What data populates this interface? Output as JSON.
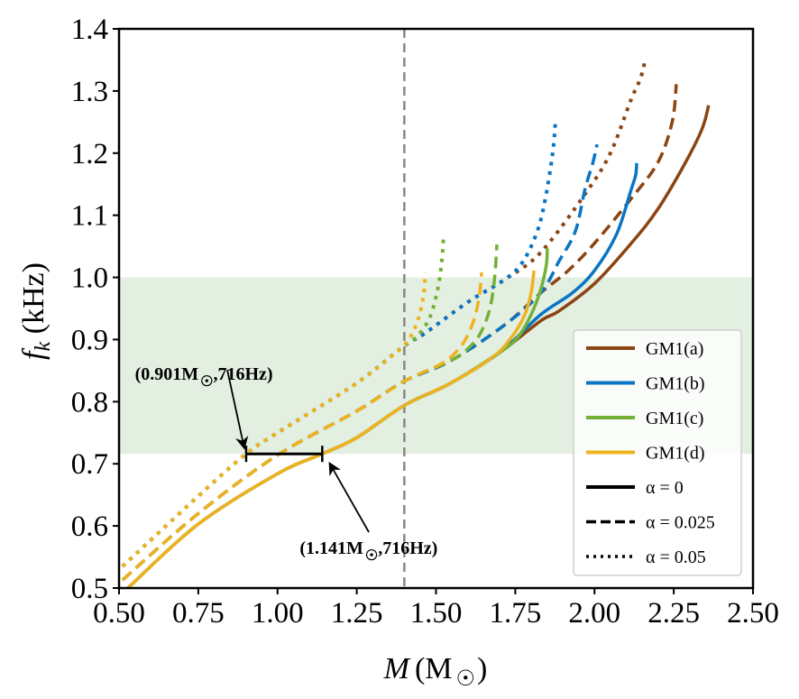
{
  "chart_data": {
    "type": "line",
    "title": "",
    "xlabel": "M (M☉)",
    "xlabel_italic": "M",
    "xlabel_unit": "(M",
    "xlabel_sub": "☉",
    "xlabel_close": ")",
    "ylabel_italic": "f",
    "ylabel_sub": "k",
    "ylabel_unit": " (kHz)",
    "xlim": [
      0.5,
      2.5
    ],
    "ylim": [
      0.5,
      1.4
    ],
    "xticks": [
      0.5,
      0.75,
      1.0,
      1.25,
      1.5,
      1.75,
      2.0,
      2.25,
      2.5
    ],
    "xtick_labels": [
      "0.50",
      "0.75",
      "1.00",
      "1.25",
      "1.50",
      "1.75",
      "2.00",
      "2.25",
      "2.50"
    ],
    "yticks": [
      0.5,
      0.6,
      0.7,
      0.8,
      0.9,
      1.0,
      1.1,
      1.2,
      1.3,
      1.4
    ],
    "ytick_labels": [
      "0.5",
      "0.6",
      "0.7",
      "0.8",
      "0.9",
      "1.0",
      "1.1",
      "1.2",
      "1.3",
      "1.4"
    ],
    "grid": false,
    "shaded_band": {
      "y_from": 0.716,
      "y_to": 1.0,
      "color": "#e3efe1"
    },
    "vertical_line": {
      "x": 1.4,
      "color": "#888888",
      "style": "dashed"
    },
    "colors": {
      "GM1(a)": "#8b4513",
      "GM1(b)": "#0a75c4",
      "GM1(c)": "#74b136",
      "GM1(d)": "#efb21e"
    },
    "series": [
      {
        "name": "GM1(a)",
        "alpha": 0,
        "style": "solid",
        "color": "#8b4513",
        "x": [
          0.528,
          0.75,
          1.0,
          1.141,
          1.25,
          1.4,
          1.547,
          1.703,
          1.83,
          1.888,
          2.0,
          2.116,
          2.2,
          2.287,
          2.34,
          2.36
        ],
        "y": [
          0.5,
          0.603,
          0.684,
          0.716,
          0.742,
          0.794,
          0.83,
          0.88,
          0.93,
          0.946,
          0.99,
          1.055,
          1.11,
          1.185,
          1.24,
          1.277
        ]
      },
      {
        "name": "GM1(a)",
        "alpha": 0.025,
        "style": "dashed",
        "color": "#8b4513",
        "x": [
          0.511,
          0.75,
          1.0,
          1.25,
          1.4,
          1.547,
          1.718,
          1.83,
          1.917,
          2.0,
          2.116,
          2.2,
          2.245,
          2.258
        ],
        "y": [
          0.513,
          0.62,
          0.714,
          0.785,
          0.833,
          0.866,
          0.924,
          0.975,
          1.011,
          1.055,
          1.127,
          1.185,
          1.25,
          1.311
        ]
      },
      {
        "name": "GM1(a)",
        "alpha": 0.05,
        "style": "dotted",
        "color": "#8b4513",
        "x": [
          0.511,
          0.75,
          0.901,
          1.0,
          1.25,
          1.4,
          1.462,
          1.6,
          1.718,
          1.83,
          1.97,
          2.05,
          2.116,
          2.145,
          2.159
        ],
        "y": [
          0.535,
          0.648,
          0.716,
          0.75,
          0.83,
          0.89,
          0.909,
          0.96,
          0.997,
          1.04,
          1.134,
          1.2,
          1.287,
          1.32,
          1.348
        ]
      },
      {
        "name": "GM1(b)",
        "alpha": 0,
        "style": "solid",
        "color": "#0a75c4",
        "x": [
          0.528,
          0.75,
          1.0,
          1.141,
          1.25,
          1.4,
          1.547,
          1.703,
          1.83,
          1.93,
          2.0,
          2.07,
          2.116,
          2.13,
          2.133
        ],
        "y": [
          0.5,
          0.603,
          0.684,
          0.716,
          0.742,
          0.794,
          0.83,
          0.88,
          0.94,
          0.975,
          1.011,
          1.07,
          1.142,
          1.165,
          1.184
        ]
      },
      {
        "name": "GM1(b)",
        "alpha": 0.025,
        "style": "dashed",
        "color": "#0a75c4",
        "x": [
          0.511,
          0.75,
          1.0,
          1.25,
          1.4,
          1.547,
          1.718,
          1.83,
          1.888,
          1.94,
          1.97,
          1.995,
          2.008
        ],
        "y": [
          0.513,
          0.62,
          0.714,
          0.785,
          0.833,
          0.866,
          0.924,
          0.975,
          1.026,
          1.075,
          1.142,
          1.185,
          1.214
        ]
      },
      {
        "name": "GM1(b)",
        "alpha": 0.05,
        "style": "dotted",
        "color": "#0a75c4",
        "x": [
          0.511,
          0.75,
          0.901,
          1.0,
          1.25,
          1.4,
          1.462,
          1.6,
          1.718,
          1.775,
          1.82,
          1.845,
          1.868,
          1.877
        ],
        "y": [
          0.535,
          0.648,
          0.716,
          0.75,
          0.83,
          0.89,
          0.909,
          0.96,
          0.997,
          1.026,
          1.075,
          1.127,
          1.2,
          1.252
        ]
      },
      {
        "name": "GM1(c)",
        "alpha": 0,
        "style": "solid",
        "color": "#74b136",
        "x": [
          0.528,
          0.75,
          1.0,
          1.141,
          1.25,
          1.4,
          1.547,
          1.703,
          1.76,
          1.8,
          1.83,
          1.848,
          1.851
        ],
        "y": [
          0.5,
          0.603,
          0.684,
          0.716,
          0.742,
          0.794,
          0.83,
          0.88,
          0.905,
          0.94,
          0.98,
          1.02,
          1.047
        ]
      },
      {
        "name": "GM1(c)",
        "alpha": 0.025,
        "style": "dashed",
        "color": "#74b136",
        "x": [
          0.511,
          0.75,
          1.0,
          1.25,
          1.4,
          1.547,
          1.6,
          1.64,
          1.67,
          1.685,
          1.692
        ],
        "y": [
          0.513,
          0.62,
          0.714,
          0.785,
          0.833,
          0.866,
          0.885,
          0.91,
          0.95,
          1.0,
          1.053
        ]
      },
      {
        "name": "GM1(c)",
        "alpha": 0.05,
        "style": "dotted",
        "color": "#74b136",
        "x": [
          0.511,
          0.75,
          0.901,
          1.0,
          1.25,
          1.4,
          1.44,
          1.48,
          1.505,
          1.518,
          1.524
        ],
        "y": [
          0.535,
          0.648,
          0.716,
          0.75,
          0.83,
          0.89,
          0.905,
          0.935,
          0.98,
          1.025,
          1.068
        ]
      },
      {
        "name": "GM1(d)",
        "alpha": 0,
        "style": "solid",
        "color": "#efb21e",
        "x": [
          0.528,
          0.75,
          1.0,
          1.141,
          1.25,
          1.4,
          1.547,
          1.68,
          1.74,
          1.78,
          1.8,
          1.809
        ],
        "y": [
          0.5,
          0.603,
          0.684,
          0.716,
          0.742,
          0.794,
          0.83,
          0.872,
          0.905,
          0.94,
          0.975,
          1.011
        ]
      },
      {
        "name": "GM1(d)",
        "alpha": 0.025,
        "style": "dashed",
        "color": "#efb21e",
        "x": [
          0.511,
          0.75,
          1.0,
          1.25,
          1.4,
          1.52,
          1.58,
          1.615,
          1.635,
          1.644
        ],
        "y": [
          0.513,
          0.62,
          0.714,
          0.785,
          0.833,
          0.862,
          0.89,
          0.925,
          0.965,
          1.008
        ]
      },
      {
        "name": "GM1(d)",
        "alpha": 0.05,
        "style": "dotted",
        "color": "#efb21e",
        "x": [
          0.511,
          0.75,
          0.901,
          1.0,
          1.25,
          1.38,
          1.42,
          1.445,
          1.46,
          1.467
        ],
        "y": [
          0.535,
          0.648,
          0.716,
          0.75,
          0.83,
          0.882,
          0.905,
          0.935,
          0.97,
          1.007
        ]
      }
    ],
    "legend": {
      "placement": "lower-right",
      "entries": [
        {
          "label": "GM1(a)",
          "color": "#8b4513",
          "style": "solid"
        },
        {
          "label": "GM1(b)",
          "color": "#0a75c4",
          "style": "solid"
        },
        {
          "label": "GM1(c)",
          "color": "#74b136",
          "style": "solid"
        },
        {
          "label": "GM1(d)",
          "color": "#efb21e",
          "style": "solid"
        },
        {
          "label": "α = 0",
          "color": "#000000",
          "style": "solid"
        },
        {
          "label": "α = 0.025",
          "color": "#000000",
          "style": "dashed"
        },
        {
          "label": "α = 0.05",
          "color": "#000000",
          "style": "dotted"
        }
      ]
    },
    "annotations": [
      {
        "label_main": "(0.901M",
        "label_sub": "☉",
        "label_tail": ",716Hz)",
        "point": [
          0.901,
          0.716
        ],
        "text_at": [
          0.55,
          0.835
        ]
      },
      {
        "label_main": "(1.141M",
        "label_sub": "☉",
        "label_tail": ",716Hz)",
        "point": [
          1.141,
          0.716
        ],
        "text_at": [
          1.07,
          0.555
        ]
      }
    ],
    "bracket": {
      "x_from": 0.901,
      "x_to": 1.141,
      "y": 0.716
    }
  }
}
